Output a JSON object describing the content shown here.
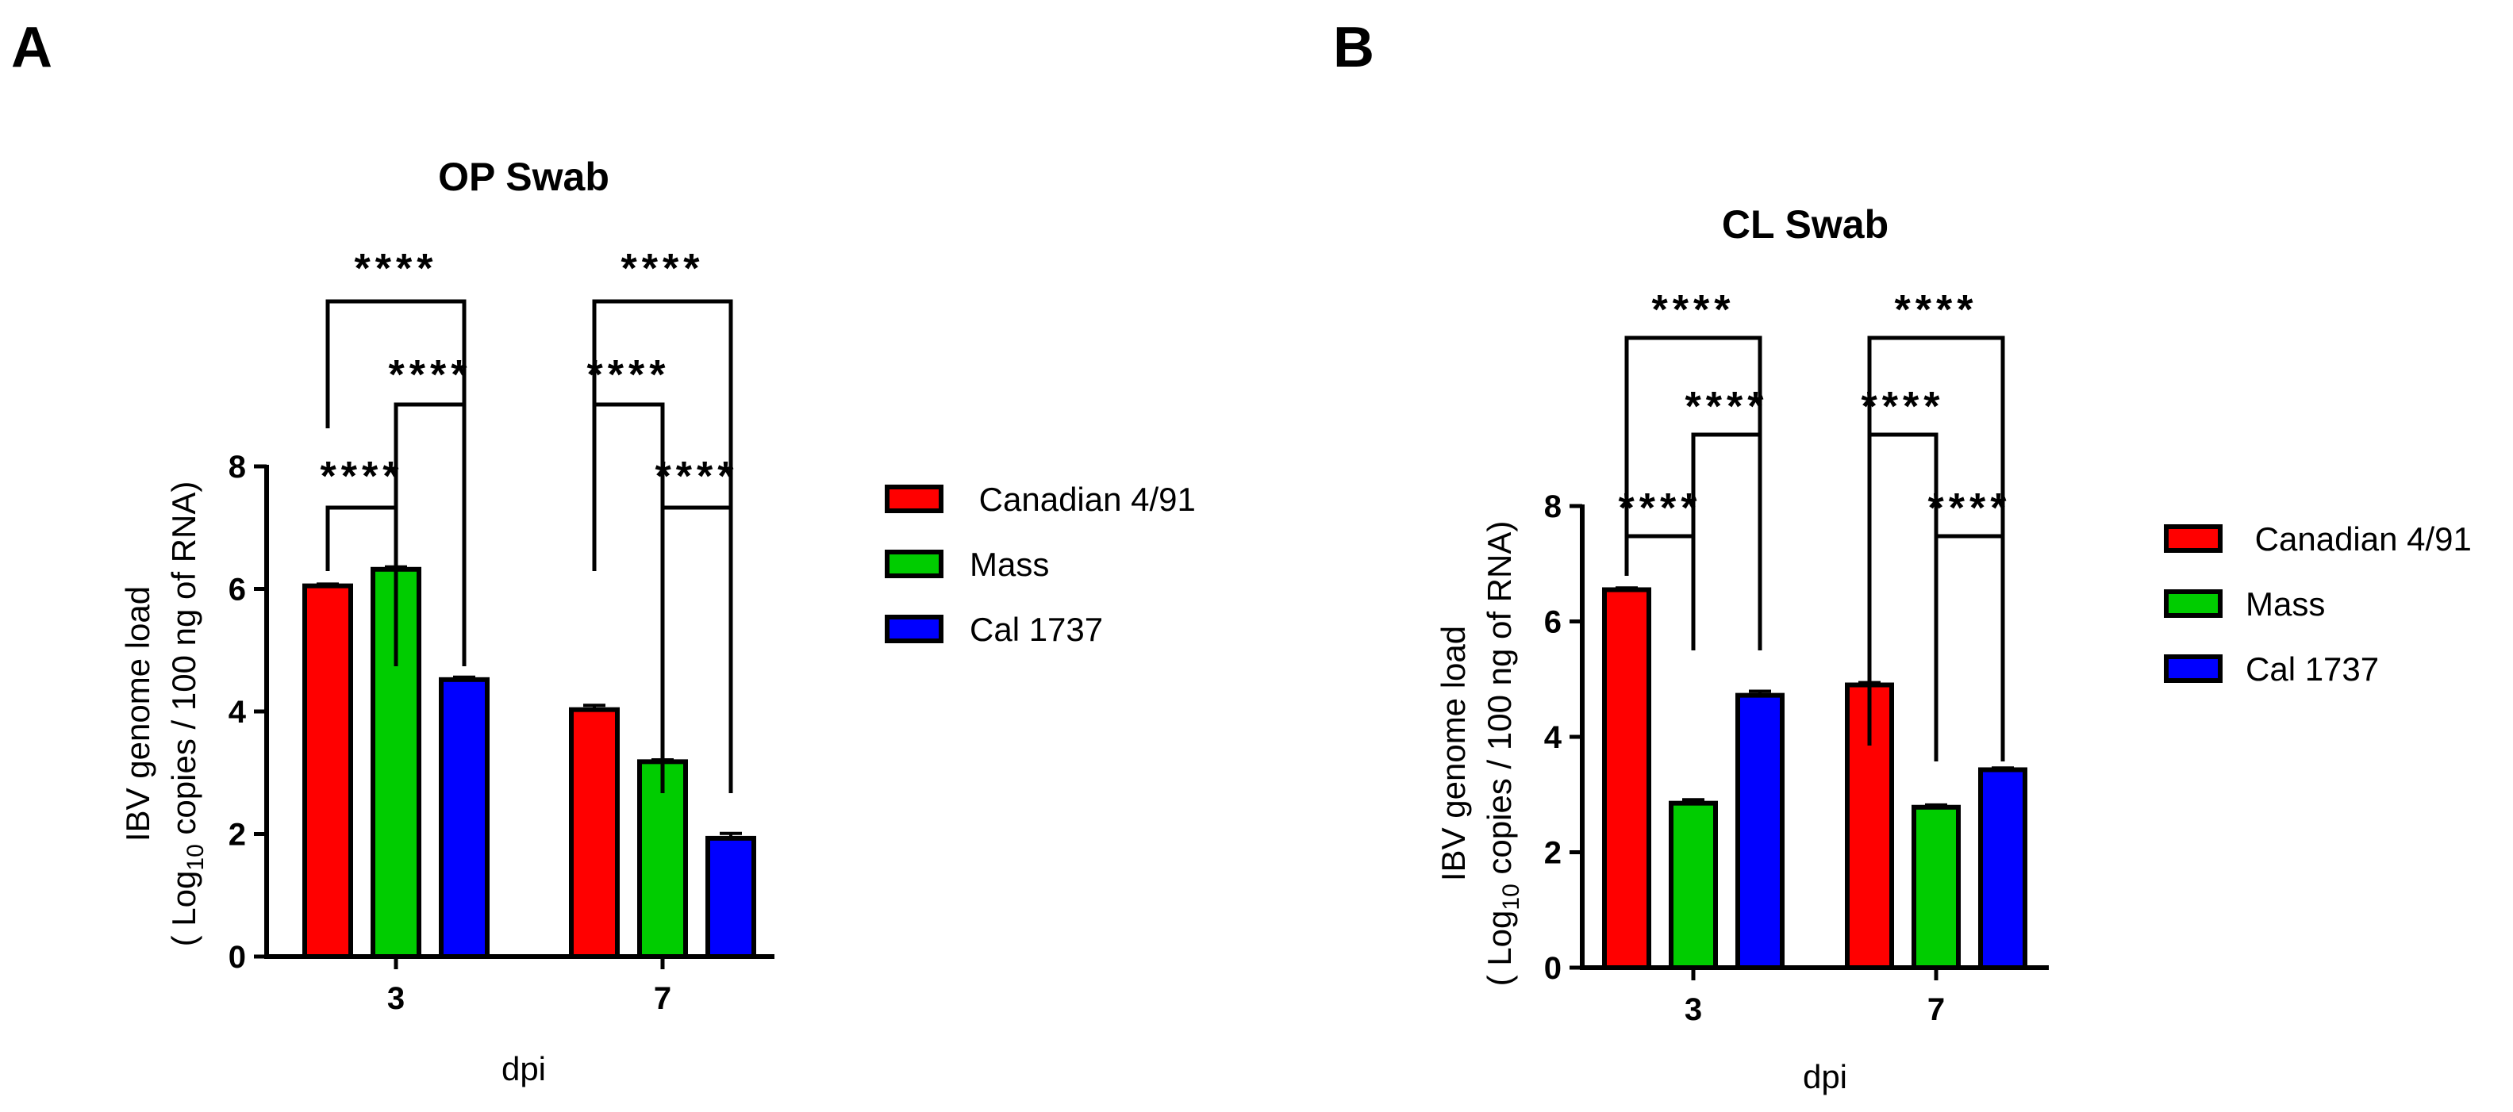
{
  "chart_data": [
    {
      "panel": "A",
      "type": "bar",
      "title": "OP Swab",
      "xlabel": "dpi",
      "ylabel_line1": "IBV genome load",
      "ylabel_line2_pre": "( Log",
      "ylabel_line2_sub": "10",
      "ylabel_line2_post": " copies / 100 ng of RNA)",
      "ylim": [
        0,
        8
      ],
      "yticks": [
        "0",
        "2",
        "4",
        "6",
        "8"
      ],
      "categories": [
        "3",
        "7"
      ],
      "series": [
        {
          "name": "Canadian 4/91",
          "legend_label": " Canadian 4/91",
          "color": "#ff0000",
          "values": [
            6.05,
            4.03
          ],
          "errors": [
            0.03,
            0.07
          ]
        },
        {
          "name": "Mass",
          "legend_label": "Mass",
          "color": "#00cc00",
          "values": [
            6.32,
            3.18
          ],
          "errors": [
            0.04,
            0.03
          ]
        },
        {
          "name": "Cal 1737",
          "legend_label": "Cal 1737",
          "color": "#0000ff",
          "values": [
            4.52,
            1.93
          ],
          "errors": [
            0.04,
            0.08
          ]
        }
      ],
      "significance": [
        {
          "category": 0,
          "from": 0,
          "to": 2,
          "level": 7.35,
          "label": "****"
        },
        {
          "category": 0,
          "from": 1,
          "to": 2,
          "level": 6.3,
          "label": "****"
        },
        {
          "category": 0,
          "from": 0,
          "to": 1,
          "level": 7.35,
          "label": "****"
        },
        {
          "category": 1,
          "from": 0,
          "to": 2,
          "level": 7.35,
          "label": "****"
        },
        {
          "category": 1,
          "from": 0,
          "to": 1,
          "level": 6.3,
          "label": "****"
        },
        {
          "category": 1,
          "from": 1,
          "to": 2,
          "level": 6.3,
          "label": "****"
        }
      ]
    },
    {
      "panel": "B",
      "type": "bar",
      "title": "CL Swab",
      "xlabel": "dpi",
      "ylabel_line1": "IBV genome load",
      "ylabel_line2_pre": "( Log",
      "ylabel_line2_sub": "10",
      "ylabel_line2_post": " copies / 100 ng of RNA)",
      "ylim": [
        0,
        8
      ],
      "yticks": [
        "0",
        "2",
        "4",
        "6",
        "8"
      ],
      "categories": [
        "3",
        "7"
      ],
      "series": [
        {
          "name": "Canadian 4/91",
          "legend_label": " Canadian 4/91",
          "color": "#ff0000",
          "values": [
            6.55,
            4.9
          ],
          "errors": [
            0.03,
            0.04
          ]
        },
        {
          "name": "Mass",
          "legend_label": "Mass",
          "color": "#00cc00",
          "values": [
            2.85,
            2.78
          ],
          "errors": [
            0.06,
            0.04
          ]
        },
        {
          "name": "Cal 1737",
          "legend_label": "Cal 1737",
          "color": "#0000ff",
          "values": [
            4.72,
            3.43
          ],
          "errors": [
            0.07,
            0.03
          ]
        }
      ],
      "significance": [
        {
          "category": 0,
          "label": "****"
        },
        {
          "category": 0,
          "label": "****"
        },
        {
          "category": 0,
          "label": "****"
        },
        {
          "category": 1,
          "label": "****"
        },
        {
          "category": 1,
          "label": "****"
        },
        {
          "category": 1,
          "label": "****"
        }
      ]
    }
  ]
}
